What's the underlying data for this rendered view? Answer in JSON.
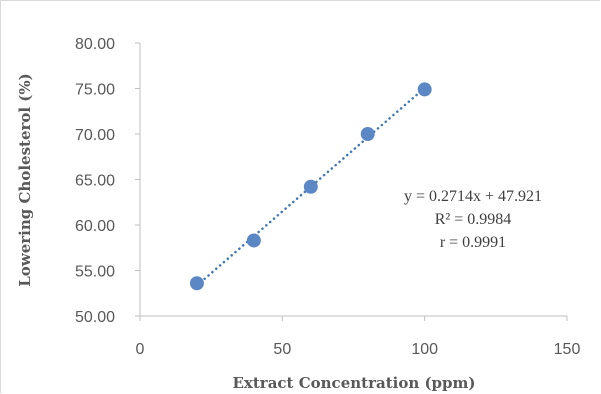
{
  "chart_data": {
    "type": "scatter",
    "title": "",
    "xlabel": "Extract Concentration (ppm)",
    "ylabel": "Lowering Cholesterol (%)",
    "xlim": [
      0,
      150
    ],
    "ylim": [
      50,
      80
    ],
    "x_ticks": [
      "0",
      "50",
      "100",
      "150"
    ],
    "y_ticks": [
      "50.00",
      "55.00",
      "60.00",
      "65.00",
      "70.00",
      "75.00",
      "80.00"
    ],
    "x": [
      20,
      40,
      60,
      80,
      100
    ],
    "y": [
      53.6,
      58.3,
      64.2,
      70.0,
      74.9
    ],
    "trendline": {
      "type": "linear",
      "style": "dotted",
      "slope": 0.2714,
      "intercept": 47.921
    },
    "annotations": {
      "equation": "y = 0.2714x + 47.921",
      "r2_label": "R² = 0.9984",
      "r_label": "r = 0.9991"
    },
    "colors": {
      "marker": "#5b87c5",
      "trendline": "#3f77b5",
      "axis": "#bfbfbf",
      "text": "#595959"
    },
    "grid": false,
    "legend": "none"
  }
}
